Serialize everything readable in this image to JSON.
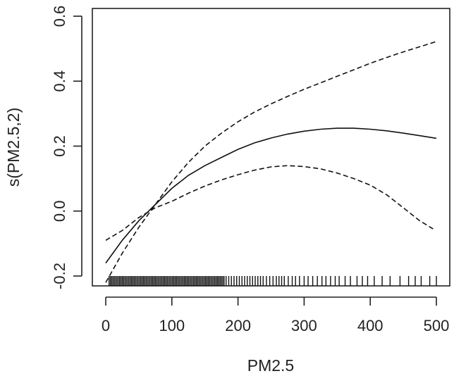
{
  "chart_data": {
    "type": "line",
    "title": "",
    "xlabel": "PM2.5",
    "ylabel": "s(PM2.5,2)",
    "xlim": [
      0,
      500
    ],
    "ylim": [
      -0.2,
      0.6
    ],
    "x_ticks": [
      0,
      100,
      200,
      300,
      400,
      500
    ],
    "x_tick_labels": [
      "0",
      "100",
      "200",
      "300",
      "400",
      "500"
    ],
    "y_ticks": [
      -0.2,
      0.0,
      0.2,
      0.4,
      0.6
    ],
    "y_tick_labels": [
      "-0.2",
      "0.0",
      "0.2",
      "0.4",
      "0.6"
    ],
    "grid": false,
    "legend": "none",
    "series": [
      {
        "style": "solid",
        "x": [
          0,
          25,
          50,
          75,
          100,
          125,
          150,
          175,
          200,
          225,
          250,
          275,
          300,
          325,
          350,
          375,
          400,
          425,
          450,
          475,
          500
        ],
        "y": [
          -0.16,
          -0.09,
          -0.03,
          0.02,
          0.07,
          0.11,
          0.14,
          0.165,
          0.19,
          0.21,
          0.225,
          0.237,
          0.246,
          0.252,
          0.255,
          0.255,
          0.252,
          0.247,
          0.24,
          0.232,
          0.224
        ]
      },
      {
        "style": "dashed",
        "x": [
          0,
          25,
          50,
          75,
          100,
          125,
          150,
          175,
          200,
          225,
          250,
          275,
          300,
          325,
          350,
          375,
          400,
          425,
          450,
          475,
          500
        ],
        "y": [
          -0.22,
          -0.13,
          -0.05,
          0.02,
          0.09,
          0.15,
          0.2,
          0.24,
          0.275,
          0.305,
          0.33,
          0.353,
          0.375,
          0.395,
          0.415,
          0.435,
          0.455,
          0.473,
          0.49,
          0.506,
          0.522
        ]
      },
      {
        "style": "dashed",
        "x": [
          0,
          25,
          50,
          75,
          100,
          125,
          150,
          175,
          200,
          225,
          250,
          275,
          300,
          325,
          350,
          375,
          400,
          425,
          450,
          475,
          495
        ],
        "y": [
          -0.09,
          -0.06,
          -0.02,
          0.01,
          0.03,
          0.055,
          0.077,
          0.096,
          0.112,
          0.126,
          0.136,
          0.14,
          0.137,
          0.13,
          0.117,
          0.1,
          0.08,
          0.05,
          0.01,
          -0.03,
          -0.055
        ]
      }
    ],
    "rug_x": [
      5,
      7,
      9,
      11,
      13,
      15,
      17,
      19,
      21,
      23,
      25,
      27,
      29,
      31,
      33,
      35,
      37,
      39,
      41,
      43,
      45,
      47,
      49,
      51,
      53,
      55,
      57,
      59,
      61,
      63,
      65,
      67,
      69,
      71,
      73,
      75,
      77,
      79,
      81,
      83,
      85,
      87,
      89,
      91,
      93,
      95,
      97,
      99,
      101,
      103,
      105,
      107,
      109,
      111,
      113,
      115,
      117,
      119,
      121,
      123,
      125,
      127,
      129,
      131,
      133,
      135,
      137,
      139,
      141,
      143,
      145,
      147,
      149,
      151,
      153,
      155,
      157,
      159,
      161,
      163,
      165,
      167,
      169,
      171,
      173,
      175,
      177,
      179,
      182,
      186,
      190,
      194,
      198,
      202,
      206,
      210,
      214,
      218,
      222,
      226,
      230,
      234,
      238,
      243,
      248,
      253,
      258,
      262,
      266,
      270,
      276,
      282,
      287,
      293,
      300,
      306,
      313,
      320,
      327,
      333,
      340,
      347,
      353,
      362,
      370,
      380,
      388,
      396,
      406,
      418,
      430,
      445,
      458,
      468,
      477,
      490,
      500
    ]
  }
}
